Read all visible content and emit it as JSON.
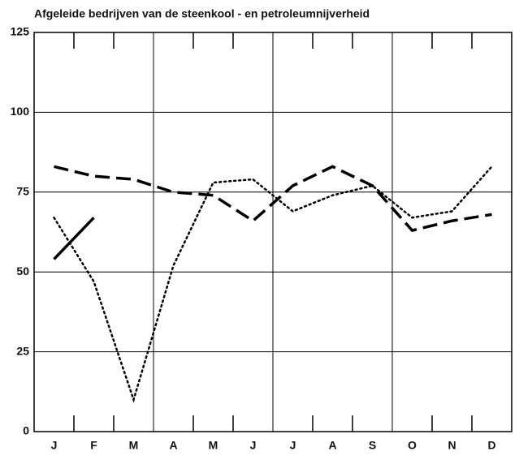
{
  "chart_data": {
    "type": "line",
    "title": "Afgeleide bedrijven van de steenkool - en petroleumnijverheid",
    "categories": [
      "J",
      "F",
      "M",
      "A",
      "M",
      "J",
      "J",
      "A",
      "S",
      "O",
      "N",
      "D"
    ],
    "series": [
      {
        "color": "#000000",
        "line_style": "solid",
        "values": [
          54,
          67,
          null,
          null,
          null,
          null,
          null,
          null,
          null,
          null,
          null,
          null
        ]
      },
      {
        "color": "#000000",
        "line_style": "dashed",
        "values": [
          83,
          80,
          79,
          75,
          74,
          66,
          77,
          83,
          77,
          63,
          66,
          68
        ]
      },
      {
        "color": "#000000",
        "line_style": "dotted",
        "values": [
          67,
          47,
          10,
          52,
          78,
          79,
          69,
          74,
          77,
          67,
          69,
          83
        ]
      }
    ],
    "ylim": [
      0,
      125
    ],
    "yticks": [
      0,
      25,
      50,
      75,
      100,
      125
    ],
    "grid": true
  }
}
